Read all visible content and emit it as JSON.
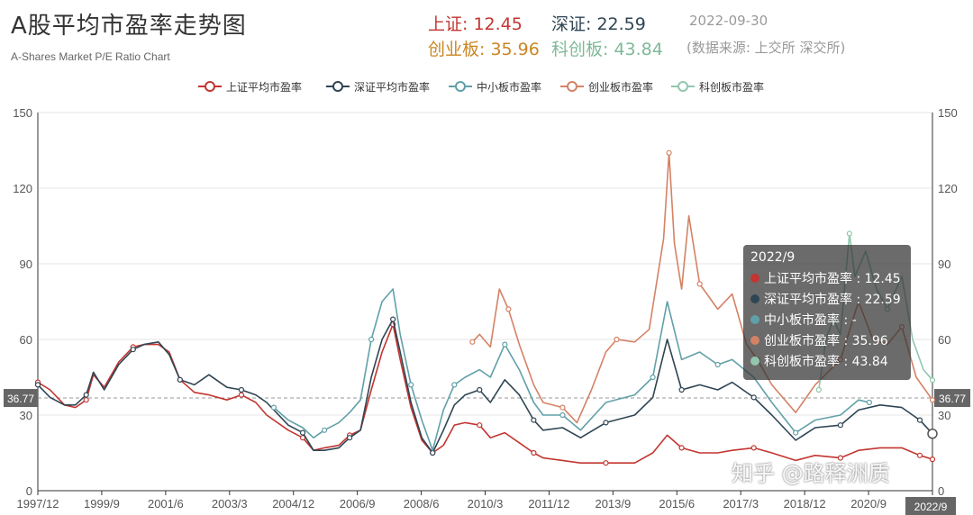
{
  "header": {
    "title": "A股平均市盈率走势图",
    "subtitle": "A-Shares Market P/E Ratio Chart",
    "sh": "上证: 12.45",
    "sz": "深证: 22.59",
    "cy": "创业板: 35.96",
    "kc": "科创板: 43.84",
    "date": "2022-09-30",
    "source": "(数据来源: 上交所 深交所)"
  },
  "tooltip": {
    "title": "2022/9",
    "rows": [
      "上证平均市盈率 : 12.45",
      "深证平均市盈率 : 22.59",
      "中小板市盈率 : -",
      "创业板市盈率 : 35.96",
      "科创板市盈率 : 43.84"
    ]
  },
  "watermark": "知乎 @路释洲质",
  "colors": {
    "sh": "#c23531",
    "sz": "#2f4554",
    "zx": "#61a0a8",
    "cy": "#d48265",
    "kc": "#91c7ae",
    "grid": "#e6e6e6",
    "axis": "#333333"
  },
  "chart_data": {
    "type": "line",
    "title": "A股平均市盈率走势图",
    "ylim": [
      0,
      150
    ],
    "yticks": [
      0,
      30,
      60,
      90,
      120,
      150
    ],
    "xticks": [
      "1997/12",
      "1999/9",
      "2001/6",
      "2003/3",
      "2004/12",
      "2006/9",
      "2008/6",
      "2010/3",
      "2011/12",
      "2013/9",
      "2015/6",
      "2017/3",
      "2018/12",
      "2020/9",
      "2022/9"
    ],
    "markline": {
      "label": "36.77",
      "value": 36.77
    },
    "legend_position": "top-center",
    "series": [
      {
        "name": "上证平均市盈率",
        "points": [
          [
            1997.96,
            43
          ],
          [
            1998.3,
            40
          ],
          [
            1998.7,
            34
          ],
          [
            1999.0,
            33
          ],
          [
            1999.3,
            36
          ],
          [
            1999.5,
            46
          ],
          [
            1999.8,
            41
          ],
          [
            2000.2,
            51
          ],
          [
            2000.6,
            57
          ],
          [
            2000.9,
            58
          ],
          [
            2001.3,
            58
          ],
          [
            2001.6,
            55
          ],
          [
            2001.9,
            44
          ],
          [
            2002.3,
            39
          ],
          [
            2002.7,
            38
          ],
          [
            2003.2,
            36
          ],
          [
            2003.6,
            38
          ],
          [
            2004.0,
            35
          ],
          [
            2004.3,
            30
          ],
          [
            2004.9,
            24
          ],
          [
            2005.3,
            21
          ],
          [
            2005.6,
            16
          ],
          [
            2005.9,
            17
          ],
          [
            2006.3,
            18
          ],
          [
            2006.6,
            22
          ],
          [
            2006.9,
            24
          ],
          [
            2007.2,
            40
          ],
          [
            2007.5,
            55
          ],
          [
            2007.8,
            66
          ],
          [
            2008.0,
            52
          ],
          [
            2008.3,
            33
          ],
          [
            2008.6,
            20
          ],
          [
            2008.9,
            15
          ],
          [
            2009.2,
            18
          ],
          [
            2009.5,
            26
          ],
          [
            2009.8,
            27
          ],
          [
            2010.2,
            26
          ],
          [
            2010.5,
            21
          ],
          [
            2010.9,
            23
          ],
          [
            2011.3,
            19
          ],
          [
            2011.7,
            15
          ],
          [
            2011.96,
            13
          ],
          [
            2012.5,
            12
          ],
          [
            2013.0,
            11
          ],
          [
            2013.7,
            11
          ],
          [
            2014.5,
            11
          ],
          [
            2015.0,
            15
          ],
          [
            2015.4,
            22
          ],
          [
            2015.8,
            17
          ],
          [
            2016.3,
            15
          ],
          [
            2016.8,
            15
          ],
          [
            2017.2,
            16
          ],
          [
            2017.8,
            17
          ],
          [
            2018.3,
            15
          ],
          [
            2018.96,
            12
          ],
          [
            2019.5,
            14
          ],
          [
            2020.2,
            13
          ],
          [
            2020.7,
            16
          ],
          [
            2021.3,
            17
          ],
          [
            2021.9,
            17
          ],
          [
            2022.4,
            14
          ],
          [
            2022.75,
            12.45
          ]
        ]
      },
      {
        "name": "深证平均市盈率",
        "points": [
          [
            1997.96,
            42
          ],
          [
            1998.3,
            37
          ],
          [
            1998.7,
            34
          ],
          [
            1999.0,
            34
          ],
          [
            1999.3,
            38
          ],
          [
            1999.5,
            47
          ],
          [
            1999.8,
            40
          ],
          [
            2000.2,
            50
          ],
          [
            2000.6,
            56
          ],
          [
            2000.9,
            58
          ],
          [
            2001.3,
            59
          ],
          [
            2001.6,
            54
          ],
          [
            2001.9,
            44
          ],
          [
            2002.3,
            42
          ],
          [
            2002.7,
            46
          ],
          [
            2003.2,
            41
          ],
          [
            2003.6,
            40
          ],
          [
            2004.0,
            38
          ],
          [
            2004.3,
            35
          ],
          [
            2004.9,
            26
          ],
          [
            2005.3,
            23
          ],
          [
            2005.6,
            16
          ],
          [
            2005.9,
            16
          ],
          [
            2006.3,
            17
          ],
          [
            2006.6,
            21
          ],
          [
            2006.9,
            24
          ],
          [
            2007.2,
            45
          ],
          [
            2007.5,
            60
          ],
          [
            2007.8,
            68
          ],
          [
            2008.0,
            55
          ],
          [
            2008.3,
            35
          ],
          [
            2008.6,
            21
          ],
          [
            2008.9,
            15
          ],
          [
            2009.2,
            24
          ],
          [
            2009.5,
            34
          ],
          [
            2009.8,
            38
          ],
          [
            2010.2,
            40
          ],
          [
            2010.5,
            35
          ],
          [
            2010.9,
            44
          ],
          [
            2011.3,
            38
          ],
          [
            2011.7,
            28
          ],
          [
            2011.96,
            24
          ],
          [
            2012.5,
            25
          ],
          [
            2013.0,
            21
          ],
          [
            2013.7,
            27
          ],
          [
            2014.5,
            30
          ],
          [
            2015.0,
            37
          ],
          [
            2015.4,
            60
          ],
          [
            2015.8,
            40
          ],
          [
            2016.3,
            42
          ],
          [
            2016.8,
            40
          ],
          [
            2017.2,
            43
          ],
          [
            2017.8,
            37
          ],
          [
            2018.3,
            30
          ],
          [
            2018.96,
            20
          ],
          [
            2019.5,
            25
          ],
          [
            2020.2,
            26
          ],
          [
            2020.7,
            32
          ],
          [
            2021.3,
            34
          ],
          [
            2021.9,
            33
          ],
          [
            2022.4,
            28
          ],
          [
            2022.75,
            22.59
          ]
        ]
      },
      {
        "name": "中小板市盈率",
        "points": [
          [
            2004.5,
            33
          ],
          [
            2004.9,
            28
          ],
          [
            2005.3,
            25
          ],
          [
            2005.6,
            21
          ],
          [
            2005.9,
            24
          ],
          [
            2006.3,
            27
          ],
          [
            2006.6,
            31
          ],
          [
            2006.9,
            36
          ],
          [
            2007.2,
            60
          ],
          [
            2007.5,
            75
          ],
          [
            2007.8,
            80
          ],
          [
            2008.0,
            62
          ],
          [
            2008.3,
            42
          ],
          [
            2008.6,
            28
          ],
          [
            2008.9,
            16
          ],
          [
            2009.2,
            32
          ],
          [
            2009.5,
            42
          ],
          [
            2009.8,
            45
          ],
          [
            2010.2,
            48
          ],
          [
            2010.5,
            45
          ],
          [
            2010.9,
            58
          ],
          [
            2011.3,
            48
          ],
          [
            2011.7,
            35
          ],
          [
            2011.96,
            30
          ],
          [
            2012.5,
            30
          ],
          [
            2013.0,
            24
          ],
          [
            2013.7,
            35
          ],
          [
            2014.5,
            38
          ],
          [
            2015.0,
            45
          ],
          [
            2015.4,
            75
          ],
          [
            2015.8,
            52
          ],
          [
            2016.3,
            55
          ],
          [
            2016.8,
            50
          ],
          [
            2017.2,
            52
          ],
          [
            2017.8,
            45
          ],
          [
            2018.3,
            35
          ],
          [
            2018.96,
            23
          ],
          [
            2019.5,
            28
          ],
          [
            2020.2,
            30
          ],
          [
            2020.7,
            36
          ],
          [
            2021.0,
            35
          ]
        ]
      },
      {
        "name": "创业板市盈率",
        "points": [
          [
            2010.0,
            59
          ],
          [
            2010.2,
            62
          ],
          [
            2010.5,
            57
          ],
          [
            2010.75,
            80
          ],
          [
            2011.0,
            72
          ],
          [
            2011.3,
            58
          ],
          [
            2011.7,
            42
          ],
          [
            2011.96,
            35
          ],
          [
            2012.5,
            33
          ],
          [
            2012.9,
            27
          ],
          [
            2013.3,
            40
          ],
          [
            2013.7,
            55
          ],
          [
            2014.0,
            60
          ],
          [
            2014.5,
            59
          ],
          [
            2014.9,
            64
          ],
          [
            2015.3,
            100
          ],
          [
            2015.45,
            134
          ],
          [
            2015.6,
            98
          ],
          [
            2015.8,
            80
          ],
          [
            2016.0,
            109
          ],
          [
            2016.3,
            82
          ],
          [
            2016.8,
            72
          ],
          [
            2017.2,
            78
          ],
          [
            2017.6,
            58
          ],
          [
            2017.9,
            52
          ],
          [
            2018.3,
            42
          ],
          [
            2018.96,
            31
          ],
          [
            2019.5,
            42
          ],
          [
            2020.2,
            52
          ],
          [
            2020.7,
            75
          ],
          [
            2021.1,
            60
          ],
          [
            2021.5,
            58
          ],
          [
            2021.9,
            65
          ],
          [
            2022.3,
            45
          ],
          [
            2022.75,
            35.96
          ]
        ]
      },
      {
        "name": "科创板市盈率",
        "points": [
          [
            2019.6,
            40
          ],
          [
            2019.8,
            60
          ],
          [
            2020.0,
            68
          ],
          [
            2020.2,
            62
          ],
          [
            2020.45,
            102
          ],
          [
            2020.6,
            85
          ],
          [
            2020.9,
            95
          ],
          [
            2021.2,
            80
          ],
          [
            2021.5,
            72
          ],
          [
            2021.9,
            85
          ],
          [
            2022.2,
            60
          ],
          [
            2022.5,
            48
          ],
          [
            2022.75,
            43.84
          ]
        ]
      }
    ]
  }
}
